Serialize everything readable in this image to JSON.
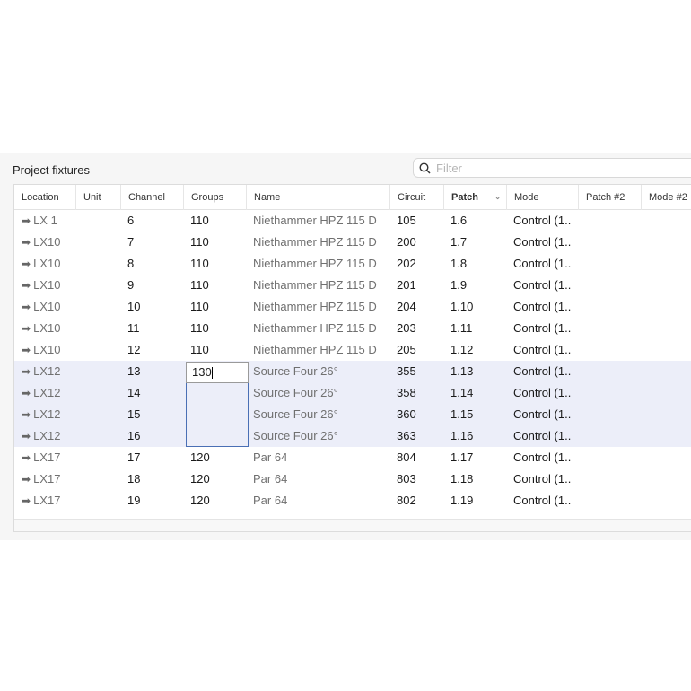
{
  "panel": {
    "title": "Project fixtures",
    "filter_placeholder": "Filter",
    "search_icon": "magnifier"
  },
  "columns": [
    "Location",
    "Unit",
    "Channel",
    "Groups",
    "Name",
    "Circuit",
    "Patch",
    "Mode",
    "Patch #2",
    "Mode #2"
  ],
  "sorted_column": "Patch",
  "edit": {
    "value": "130"
  },
  "colors": {
    "selection": "#eceef9",
    "edit_border": "#4a6fb5"
  },
  "rows": [
    {
      "location": "LX 1",
      "unit": "",
      "channel": "6",
      "groups": "110",
      "name": "Niethammer HPZ 115 D",
      "circuit": "105",
      "patch": "1.6",
      "mode": "Control (1..",
      "selected": false
    },
    {
      "location": "LX10",
      "unit": "",
      "channel": "7",
      "groups": "110",
      "name": "Niethammer HPZ 115 D",
      "circuit": "200",
      "patch": "1.7",
      "mode": "Control (1..",
      "selected": false
    },
    {
      "location": "LX10",
      "unit": "",
      "channel": "8",
      "groups": "110",
      "name": "Niethammer HPZ 115 D",
      "circuit": "202",
      "patch": "1.8",
      "mode": "Control (1..",
      "selected": false
    },
    {
      "location": "LX10",
      "unit": "",
      "channel": "9",
      "groups": "110",
      "name": "Niethammer HPZ 115 D",
      "circuit": "201",
      "patch": "1.9",
      "mode": "Control (1..",
      "selected": false
    },
    {
      "location": "LX10",
      "unit": "",
      "channel": "10",
      "groups": "110",
      "name": "Niethammer HPZ 115 D",
      "circuit": "204",
      "patch": "1.10",
      "mode": "Control (1..",
      "selected": false
    },
    {
      "location": "LX10",
      "unit": "",
      "channel": "11",
      "groups": "110",
      "name": "Niethammer HPZ 115 D",
      "circuit": "203",
      "patch": "1.11",
      "mode": "Control (1..",
      "selected": false
    },
    {
      "location": "LX10",
      "unit": "",
      "channel": "12",
      "groups": "110",
      "name": "Niethammer HPZ 115 D",
      "circuit": "205",
      "patch": "1.12",
      "mode": "Control (1..",
      "selected": false
    },
    {
      "location": "LX12",
      "unit": "",
      "channel": "13",
      "groups": "",
      "name": "Source Four 26°",
      "circuit": "355",
      "patch": "1.13",
      "mode": "Control (1..",
      "selected": true
    },
    {
      "location": "LX12",
      "unit": "",
      "channel": "14",
      "groups": "",
      "name": "Source Four 26°",
      "circuit": "358",
      "patch": "1.14",
      "mode": "Control (1..",
      "selected": true
    },
    {
      "location": "LX12",
      "unit": "",
      "channel": "15",
      "groups": "",
      "name": "Source Four 26°",
      "circuit": "360",
      "patch": "1.15",
      "mode": "Control (1..",
      "selected": true
    },
    {
      "location": "LX12",
      "unit": "",
      "channel": "16",
      "groups": "",
      "name": "Source Four 26°",
      "circuit": "363",
      "patch": "1.16",
      "mode": "Control (1..",
      "selected": true
    },
    {
      "location": "LX17",
      "unit": "",
      "channel": "17",
      "groups": "120",
      "name": "Par 64",
      "circuit": "804",
      "patch": "1.17",
      "mode": "Control (1..",
      "selected": false
    },
    {
      "location": "LX17",
      "unit": "",
      "channel": "18",
      "groups": "120",
      "name": "Par 64",
      "circuit": "803",
      "patch": "1.18",
      "mode": "Control (1..",
      "selected": false
    },
    {
      "location": "LX17",
      "unit": "",
      "channel": "19",
      "groups": "120",
      "name": "Par 64",
      "circuit": "802",
      "patch": "1.19",
      "mode": "Control (1..",
      "selected": false
    }
  ]
}
